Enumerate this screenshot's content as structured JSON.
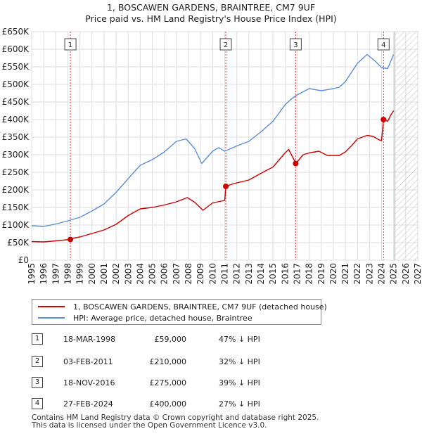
{
  "chart_data": {
    "type": "line",
    "title": "1, BOSCAWEN GARDENS, BRAINTREE, CM7 9UF",
    "subtitle": "Price paid vs. HM Land Registry's House Price Index (HPI)",
    "xlabel": "",
    "ylabel": "",
    "xlim": [
      1995,
      2027
    ],
    "ylim": [
      0,
      650000
    ],
    "x_ticks": [
      "1995",
      "1996",
      "1997",
      "1998",
      "1999",
      "2000",
      "2001",
      "2002",
      "2003",
      "2004",
      "2005",
      "2006",
      "2007",
      "2008",
      "2009",
      "2010",
      "2011",
      "2012",
      "2013",
      "2014",
      "2015",
      "2016",
      "2017",
      "2018",
      "2019",
      "2020",
      "2021",
      "2022",
      "2023",
      "2024",
      "2025",
      "2026",
      "2027"
    ],
    "y_ticks": [
      {
        "value": 0,
        "label": "£0"
      },
      {
        "value": 50000,
        "label": "£50K"
      },
      {
        "value": 100000,
        "label": "£100K"
      },
      {
        "value": 150000,
        "label": "£150K"
      },
      {
        "value": 200000,
        "label": "£200K"
      },
      {
        "value": 250000,
        "label": "£250K"
      },
      {
        "value": 300000,
        "label": "£300K"
      },
      {
        "value": 350000,
        "label": "£350K"
      },
      {
        "value": 400000,
        "label": "£400K"
      },
      {
        "value": 450000,
        "label": "£450K"
      },
      {
        "value": 500000,
        "label": "£500K"
      },
      {
        "value": 550000,
        "label": "£550K"
      },
      {
        "value": 600000,
        "label": "£600K"
      },
      {
        "value": 650000,
        "label": "£650K"
      }
    ],
    "grid": true,
    "hatched_region_from": 2025.1,
    "series": [
      {
        "name": "1, BOSCAWEN GARDENS, BRAINTREE, CM7 9UF (detached house)",
        "color": "#cc0000",
        "points": [
          [
            1995.0,
            53000
          ],
          [
            1996.0,
            52000
          ],
          [
            1997.0,
            55000
          ],
          [
            1998.2,
            59000
          ],
          [
            1998.5,
            63000
          ],
          [
            1999.0,
            66000
          ],
          [
            2000.0,
            76000
          ],
          [
            2001.0,
            86000
          ],
          [
            2002.0,
            102000
          ],
          [
            2003.0,
            127000
          ],
          [
            2004.0,
            146000
          ],
          [
            2005.0,
            150000
          ],
          [
            2006.0,
            157000
          ],
          [
            2007.0,
            166000
          ],
          [
            2007.9,
            178000
          ],
          [
            2008.5,
            165000
          ],
          [
            2009.2,
            142000
          ],
          [
            2010.0,
            163000
          ],
          [
            2011.0,
            170000
          ],
          [
            2011.1,
            210000
          ],
          [
            2011.5,
            215000
          ],
          [
            2012.0,
            220000
          ],
          [
            2013.0,
            228000
          ],
          [
            2014.0,
            247000
          ],
          [
            2015.0,
            265000
          ],
          [
            2016.0,
            305000
          ],
          [
            2016.3,
            315000
          ],
          [
            2016.9,
            275000
          ],
          [
            2017.5,
            300000
          ],
          [
            2018.0,
            305000
          ],
          [
            2018.8,
            310000
          ],
          [
            2019.5,
            298000
          ],
          [
            2020.0,
            298000
          ],
          [
            2020.5,
            298000
          ],
          [
            2021.0,
            308000
          ],
          [
            2021.5,
            325000
          ],
          [
            2022.0,
            345000
          ],
          [
            2022.8,
            355000
          ],
          [
            2023.3,
            352000
          ],
          [
            2023.8,
            342000
          ],
          [
            2024.0,
            340000
          ],
          [
            2024.16,
            400000
          ],
          [
            2024.5,
            395000
          ],
          [
            2024.8,
            415000
          ],
          [
            2025.0,
            425000
          ]
        ]
      },
      {
        "name": "HPI: Average price, detached house, Braintree",
        "color": "#5b8ed6",
        "points": [
          [
            1995.0,
            98000
          ],
          [
            1996.0,
            96000
          ],
          [
            1997.0,
            103000
          ],
          [
            1998.0,
            112000
          ],
          [
            1999.0,
            122000
          ],
          [
            2000.0,
            140000
          ],
          [
            2001.0,
            160000
          ],
          [
            2002.0,
            193000
          ],
          [
            2003.0,
            232000
          ],
          [
            2004.0,
            270000
          ],
          [
            2005.0,
            286000
          ],
          [
            2006.0,
            308000
          ],
          [
            2007.0,
            338000
          ],
          [
            2007.8,
            345000
          ],
          [
            2008.5,
            318000
          ],
          [
            2009.1,
            275000
          ],
          [
            2010.0,
            310000
          ],
          [
            2010.5,
            320000
          ],
          [
            2011.0,
            310000
          ],
          [
            2012.0,
            325000
          ],
          [
            2013.0,
            338000
          ],
          [
            2014.0,
            365000
          ],
          [
            2015.0,
            395000
          ],
          [
            2016.0,
            442000
          ],
          [
            2016.5,
            458000
          ],
          [
            2017.0,
            470000
          ],
          [
            2018.0,
            488000
          ],
          [
            2019.0,
            482000
          ],
          [
            2020.0,
            488000
          ],
          [
            2020.5,
            492000
          ],
          [
            2021.0,
            508000
          ],
          [
            2022.0,
            560000
          ],
          [
            2022.8,
            585000
          ],
          [
            2023.5,
            565000
          ],
          [
            2024.0,
            548000
          ],
          [
            2024.5,
            545000
          ],
          [
            2025.0,
            585000
          ]
        ]
      }
    ],
    "annotations": [
      {
        "label": "1",
        "x": 1998.21,
        "y": 59000
      },
      {
        "label": "2",
        "x": 2011.09,
        "y": 210000
      },
      {
        "label": "3",
        "x": 2016.88,
        "y": 275000
      },
      {
        "label": "4",
        "x": 2024.16,
        "y": 400000
      }
    ]
  },
  "legend": {
    "items": [
      {
        "label": "1, BOSCAWEN GARDENS, BRAINTREE, CM7 9UF (detached house)",
        "color": "#cc0000"
      },
      {
        "label": "HPI: Average price, detached house, Braintree",
        "color": "#5b8ed6"
      }
    ]
  },
  "sales": [
    {
      "num": "1",
      "date": "18-MAR-1998",
      "price": "£59,000",
      "hpi": "47% ↓ HPI"
    },
    {
      "num": "2",
      "date": "03-FEB-2011",
      "price": "£210,000",
      "hpi": "32% ↓ HPI"
    },
    {
      "num": "3",
      "date": "18-NOV-2016",
      "price": "£275,000",
      "hpi": "39% ↓ HPI"
    },
    {
      "num": "4",
      "date": "27-FEB-2024",
      "price": "£400,000",
      "hpi": "27% ↓ HPI"
    }
  ],
  "footer": {
    "line1": "Contains HM Land Registry data © Crown copyright and database right 2025.",
    "line2": "This data is licensed under the Open Government Licence v3.0."
  }
}
